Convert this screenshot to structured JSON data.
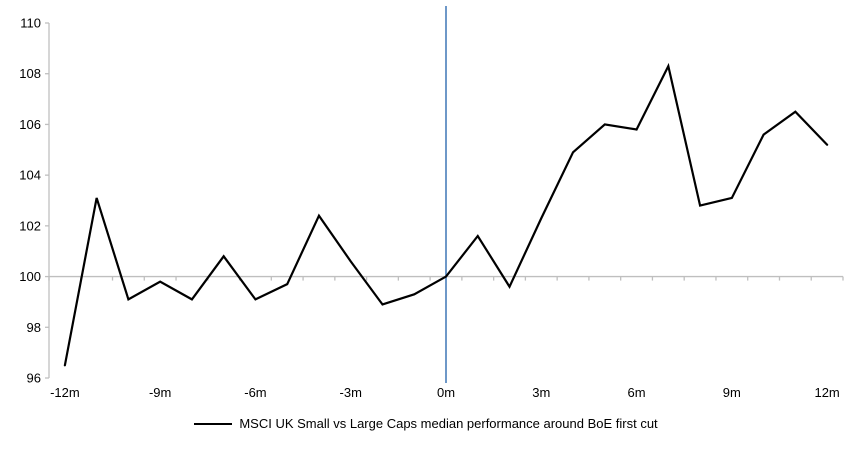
{
  "chart_data": {
    "type": "line",
    "title": "",
    "legend": "MSCI UK Small vs Large Caps median performance around BoE first cut",
    "xlabel": "",
    "ylabel": "",
    "x_unit": "months relative to first BoE rate cut",
    "x": [
      -12,
      -11,
      -10,
      -9,
      -8,
      -7,
      -6,
      -5,
      -4,
      -3,
      -2,
      -1,
      0,
      1,
      2,
      3,
      4,
      5,
      6,
      7,
      8,
      9,
      10,
      11,
      12
    ],
    "series": [
      {
        "name": "MSCI UK Small vs Large Caps median performance around BoE first cut",
        "values": [
          96.5,
          103.1,
          99.1,
          99.8,
          99.1,
          100.8,
          99.1,
          99.7,
          102.4,
          100.6,
          98.9,
          99.3,
          100.0,
          101.6,
          99.6,
          102.3,
          104.9,
          106.0,
          105.8,
          108.3,
          102.8,
          103.1,
          105.6,
          106.5,
          105.2
        ]
      }
    ],
    "ylim": [
      96,
      110
    ],
    "y_ticks": [
      96,
      98,
      100,
      102,
      104,
      106,
      108,
      110
    ],
    "x_ticks": [
      {
        "month": -12,
        "label": "-12m"
      },
      {
        "month": -9,
        "label": "-9m"
      },
      {
        "month": -6,
        "label": "-6m"
      },
      {
        "month": -3,
        "label": "-3m"
      },
      {
        "month": 0,
        "label": "0m"
      },
      {
        "month": 3,
        "label": "3m"
      },
      {
        "month": 6,
        "label": "6m"
      },
      {
        "month": 9,
        "label": "9m"
      },
      {
        "month": 12,
        "label": "12m"
      }
    ],
    "baseline_value": 100,
    "event_line_month": 0,
    "grid": "single horizontal line at baseline 100 only",
    "legend_position": "bottom-center",
    "colors": {
      "series": "#000000",
      "event_line": "#4a7ebb",
      "axis": "#bfbfbf",
      "text": "#000000",
      "background": "#ffffff"
    }
  }
}
